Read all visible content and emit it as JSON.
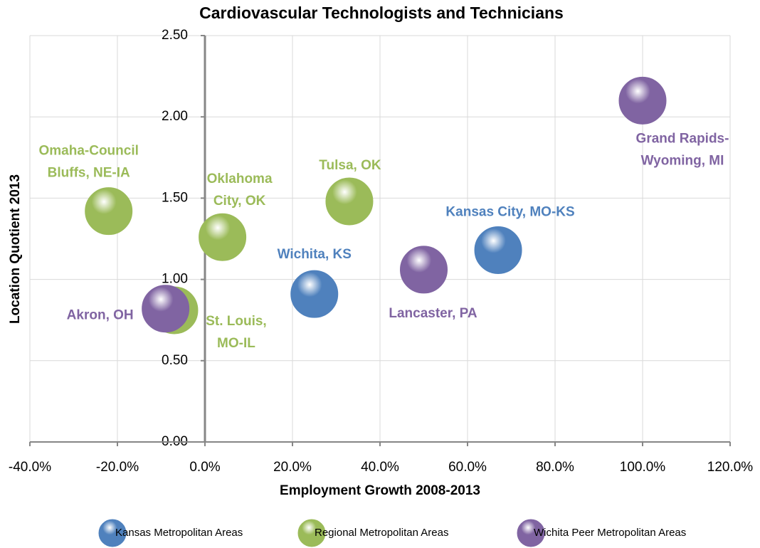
{
  "chart_data": {
    "type": "bubble",
    "title": "Cardiovascular Technologists and Technicians",
    "x_label": "Employment Growth 2008-2013",
    "y_label": "Location Quotient 2013",
    "xlim": [
      -40,
      120
    ],
    "ylim": [
      0,
      2.5
    ],
    "xticks": [
      {
        "value": -40,
        "label": "-40.0%"
      },
      {
        "value": -20,
        "label": "-20.0%"
      },
      {
        "value": 0,
        "label": "0.0%"
      },
      {
        "value": 20,
        "label": "20.0%"
      },
      {
        "value": 40,
        "label": "40.0%"
      },
      {
        "value": 60,
        "label": "60.0%"
      },
      {
        "value": 80,
        "label": "80.0%"
      },
      {
        "value": 100,
        "label": "100.0%"
      },
      {
        "value": 120,
        "label": "120.0%"
      }
    ],
    "yticks": [
      {
        "value": 0,
        "label": "0.00"
      },
      {
        "value": 0.5,
        "label": "0.50"
      },
      {
        "value": 1,
        "label": "1.00"
      },
      {
        "value": 1.5,
        "label": "1.50"
      },
      {
        "value": 2,
        "label": "2.00"
      },
      {
        "value": 2.5,
        "label": "2.50"
      }
    ],
    "grid": true,
    "legend": "bottom",
    "series": [
      {
        "name": "Kansas Metropolitan Areas",
        "color": "#4f81bd",
        "x": [
          25,
          67
        ],
        "values": [
          0.91,
          1.18
        ],
        "labels": [
          [
            "Wichita, KS"
          ],
          [
            "Kansas City, MO-KS"
          ]
        ]
      },
      {
        "name": "Regional Metropolitan Areas",
        "color": "#9bbb59",
        "x": [
          -22,
          4,
          33,
          -7
        ],
        "values": [
          1.42,
          1.26,
          1.48,
          0.81
        ],
        "labels": [
          [
            "Omaha-Council",
            "Bluffs, NE-IA"
          ],
          [
            "Oklahoma",
            "City, OK"
          ],
          [
            "Tulsa, OK"
          ],
          [
            "St. Louis,",
            "MO-IL"
          ]
        ]
      },
      {
        "name": "Wichita Peer Metropolitan Areas",
        "color": "#8064a2",
        "x": [
          -9,
          50,
          100
        ],
        "values": [
          0.82,
          1.06,
          2.1
        ],
        "labels": [
          [
            "Akron, OH"
          ],
          [
            "Lancaster, PA"
          ],
          [
            "Grand Rapids-",
            "Wyoming, MI"
          ]
        ]
      }
    ]
  }
}
